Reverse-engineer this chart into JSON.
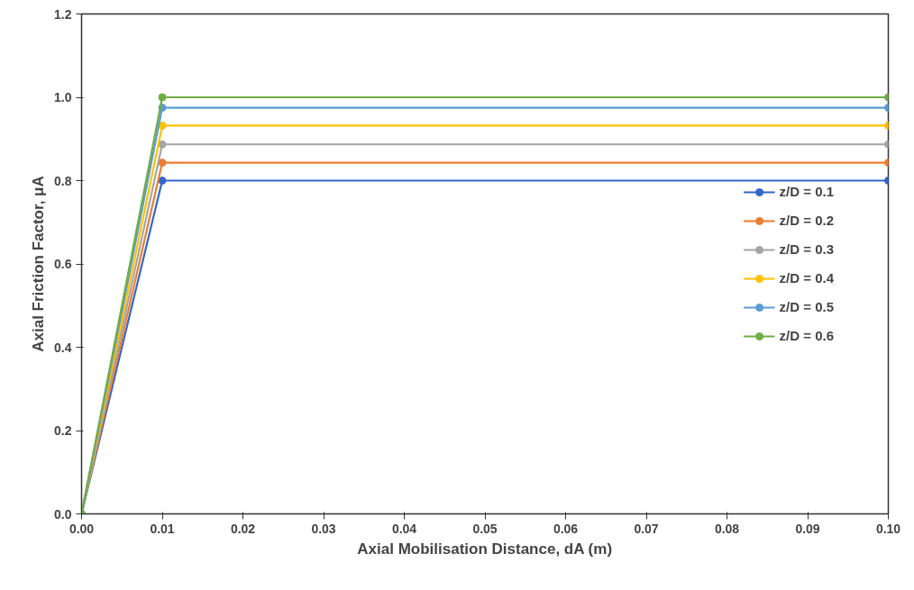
{
  "chart_data": {
    "type": "line",
    "xlabel": "Axial Mobilisation Distance, dA (m)",
    "ylabel": "Axial Friction Factor, μA",
    "x": [
      0,
      0.01,
      0.1
    ],
    "series": [
      {
        "name": "z/D = 0.1",
        "color": "#3366cc",
        "values": [
          0,
          0.8,
          0.8
        ]
      },
      {
        "name": "z/D = 0.2",
        "color": "#ed7d31",
        "values": [
          0,
          0.843,
          0.843
        ]
      },
      {
        "name": "z/D = 0.3",
        "color": "#a5a5a5",
        "values": [
          0,
          0.887,
          0.887
        ]
      },
      {
        "name": "z/D = 0.4",
        "color": "#ffc000",
        "values": [
          0,
          0.932,
          0.932
        ]
      },
      {
        "name": "z/D = 0.5",
        "color": "#5b9bd5",
        "values": [
          0,
          0.975,
          0.975
        ]
      },
      {
        "name": "z/D = 0.6",
        "color": "#70ad47",
        "values": [
          0,
          1.0,
          1.0
        ]
      }
    ],
    "xlim": [
      0,
      0.1
    ],
    "ylim": [
      0,
      1.2
    ],
    "xticks": [
      {
        "value": 0,
        "label": "0.00"
      },
      0.01,
      0.02,
      0.03,
      0.04,
      0.05,
      0.06,
      0.07,
      0.08,
      0.09,
      {
        "value": 0.1,
        "label": "0.10"
      }
    ],
    "yticks": [
      {
        "value": 0,
        "label": "0.0"
      },
      0.2,
      0.4,
      0.6,
      0.8,
      {
        "value": 1,
        "label": "1.0"
      },
      1.2
    ],
    "grid": false,
    "legend": "right",
    "marker": "circle",
    "line_style": "solid"
  }
}
